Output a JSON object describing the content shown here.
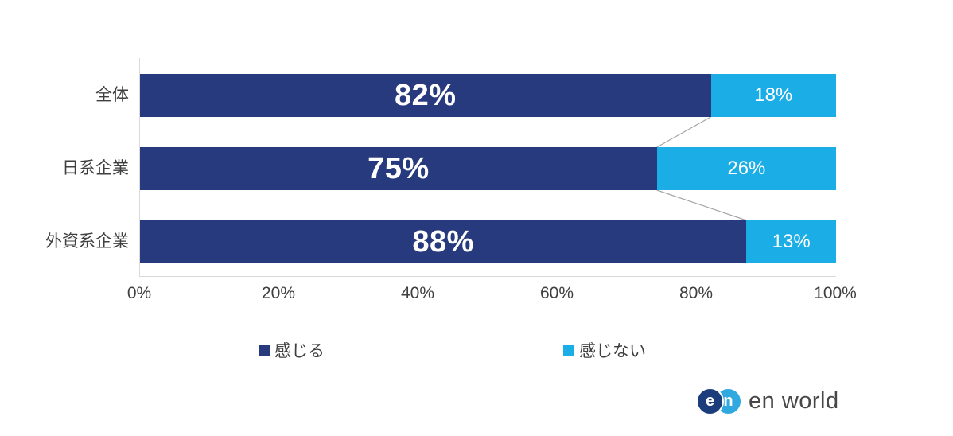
{
  "chart_data": {
    "type": "bar",
    "orientation": "horizontal",
    "stacked": true,
    "grid": false,
    "categories": [
      "全体",
      "日系企業",
      "外資系企業"
    ],
    "series": [
      {
        "name": "感じる",
        "color": "#283a7e",
        "values": [
          82,
          75,
          88
        ]
      },
      {
        "name": "感じない",
        "color": "#1aade6",
        "values": [
          18,
          26,
          13
        ]
      }
    ],
    "value_labels": [
      [
        "82%",
        "18%"
      ],
      [
        "75%",
        "26%"
      ],
      [
        "88%",
        "13%"
      ]
    ],
    "x_ticks": [
      "0%",
      "20%",
      "40%",
      "60%",
      "80%",
      "100%"
    ],
    "xlim": [
      0,
      100
    ],
    "legend": [
      {
        "label": "感じる",
        "color": "#283a7e"
      },
      {
        "label": "感じない",
        "color": "#1aade6"
      }
    ],
    "legend_position": "bottom"
  },
  "branding": {
    "logo_e": "e",
    "logo_n": "n",
    "logo_text": "en world",
    "logo_dark_color": "#1b3d7c",
    "logo_light_color": "#2fa9e0"
  },
  "colors": {
    "bar_dark": "#283a7e",
    "bar_light": "#1aade6",
    "axis_line": "#d9d9d9",
    "connector_line": "#a6a6a6",
    "label_text": "#3f3f3f"
  }
}
